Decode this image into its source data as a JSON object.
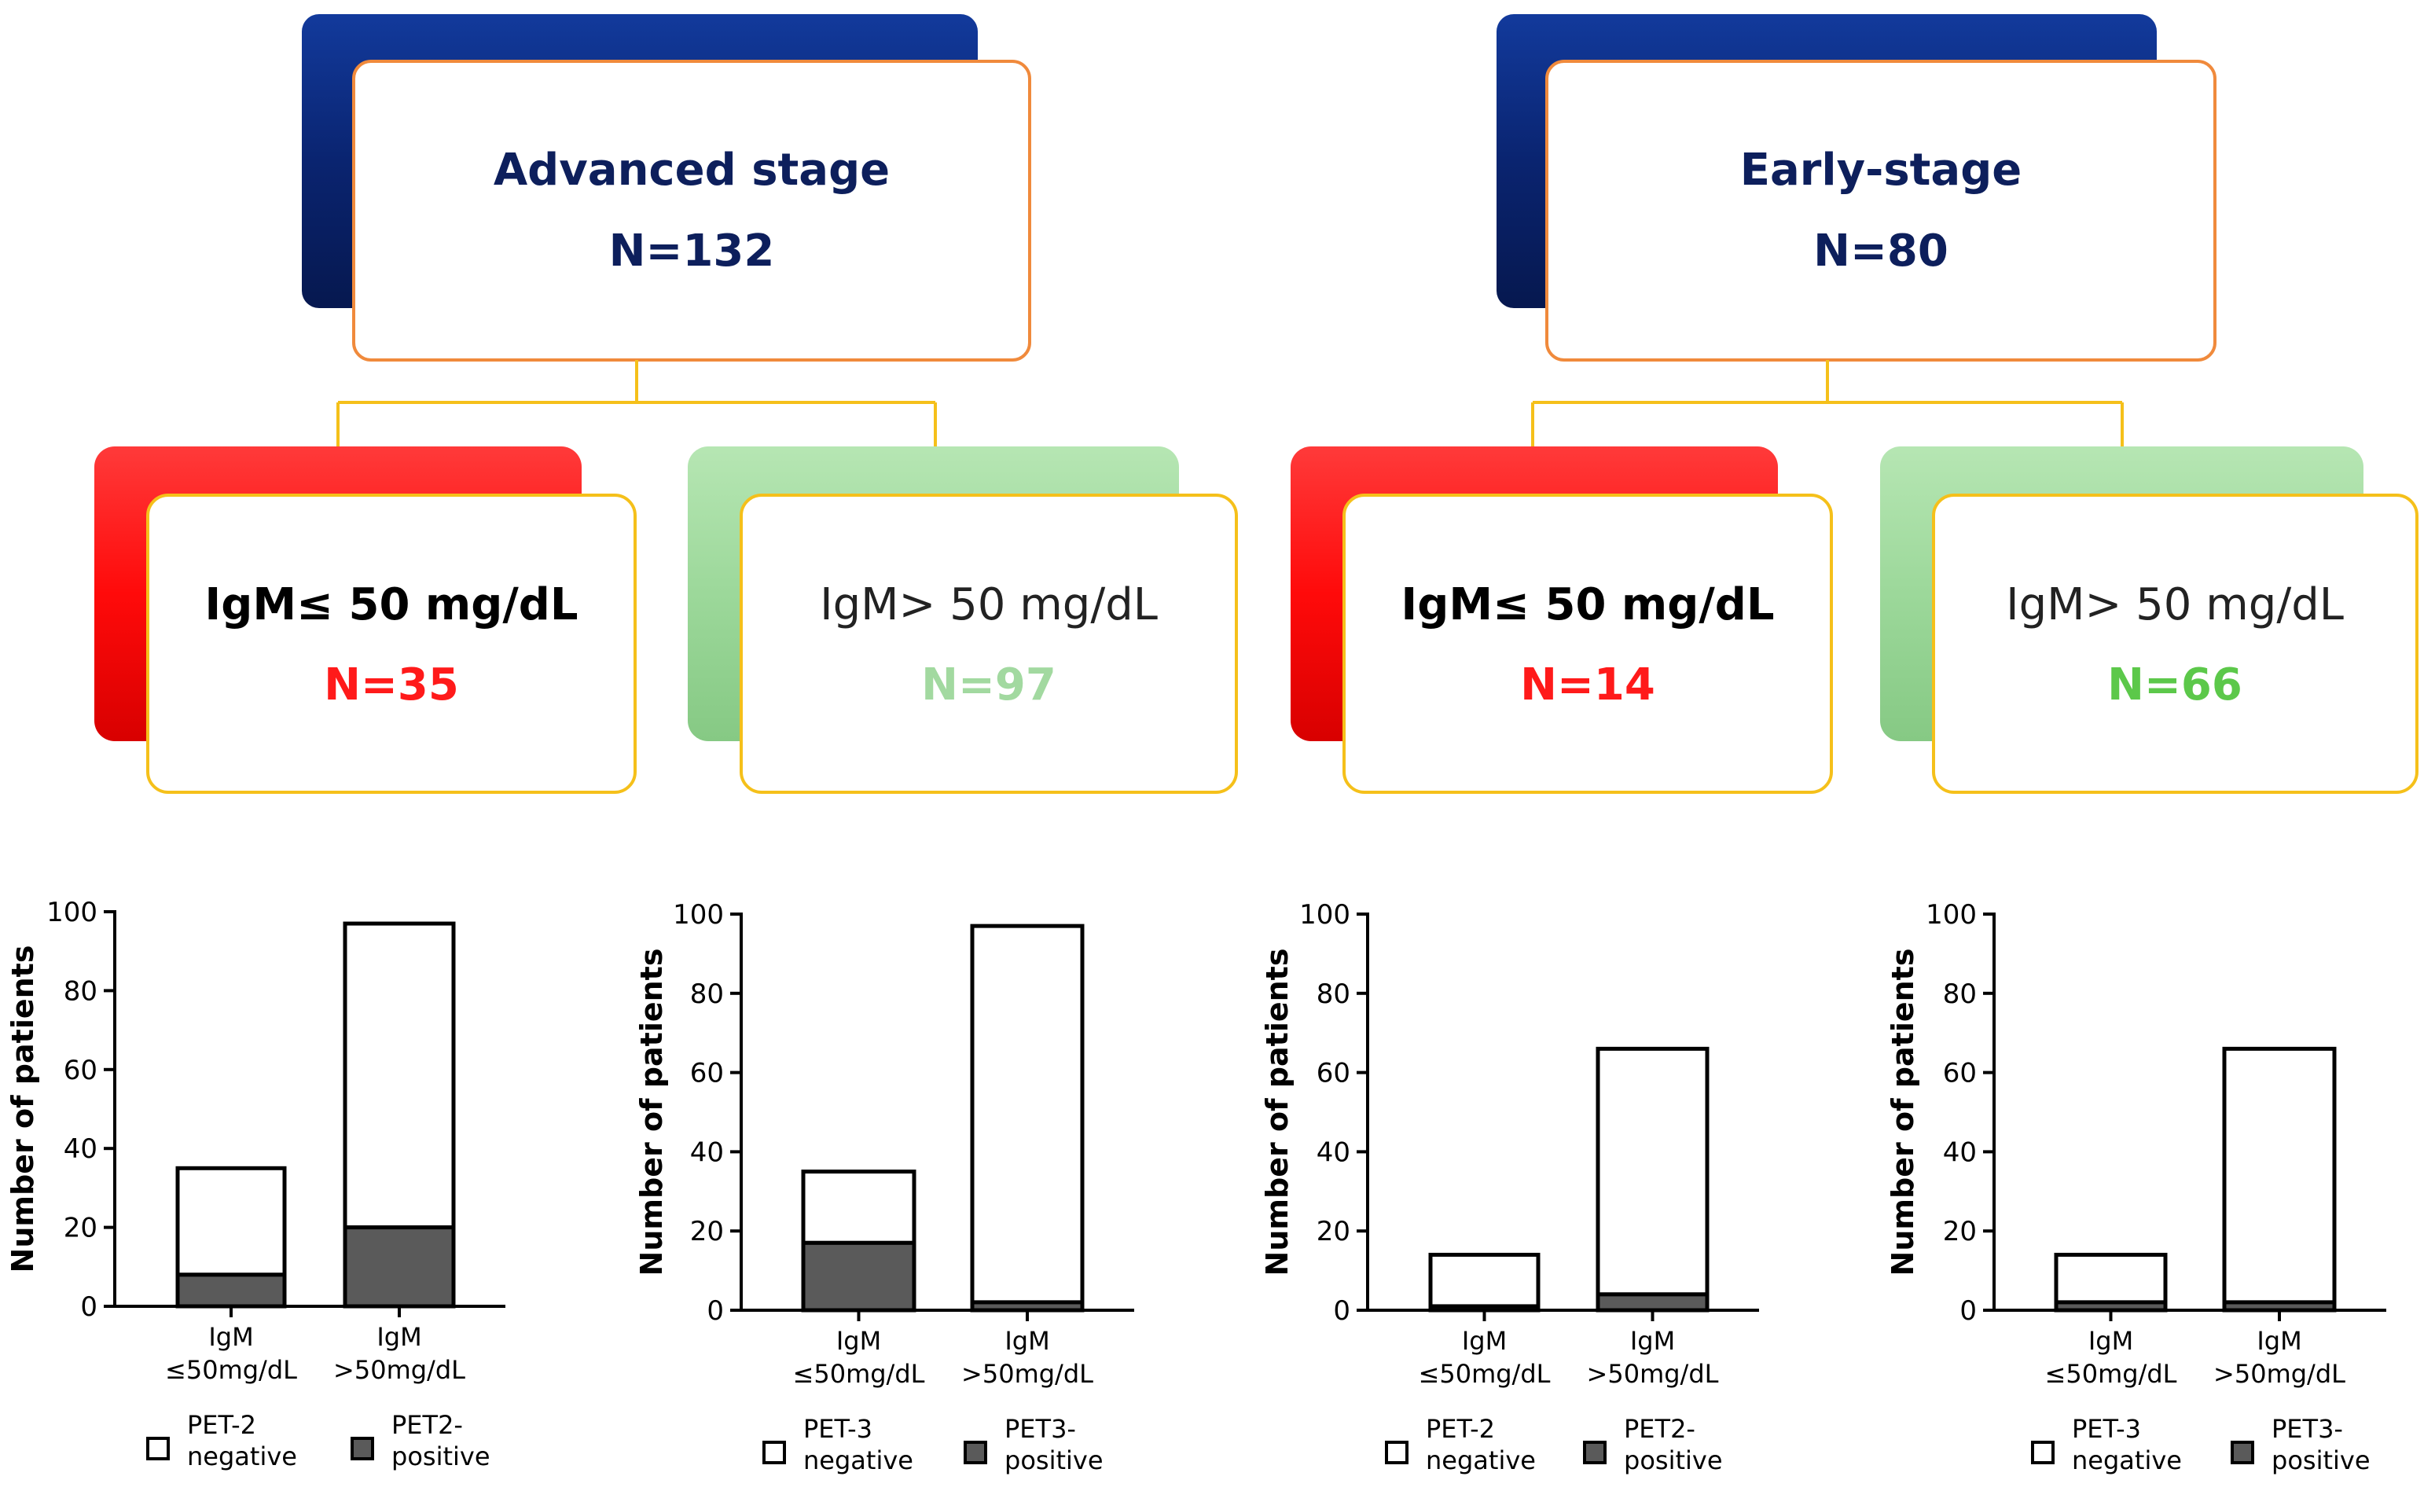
{
  "colors": {
    "navy": "#0a2470",
    "navy_text": "#0d1f5c",
    "orange_border": "#f08a3c",
    "yellow": "#f5c01a",
    "red": "#ff1010",
    "red_text": "#ff1a1a",
    "green": "#9cd89a",
    "green_text_light": "#a2d9a0",
    "green_text": "#5cc84a",
    "pet_positive": "#5a5a5a"
  },
  "groups": [
    {
      "title": "Advanced stage",
      "n": "N=132",
      "low": {
        "label": "IgM≤ 50 mg/dL",
        "n": "N=35"
      },
      "high": {
        "label": "IgM> 50 mg/dL",
        "n": "N=97"
      }
    },
    {
      "title": "Early-stage",
      "n": "N=80",
      "low": {
        "label": "IgM≤ 50 mg/dL",
        "n": "N=14"
      },
      "high": {
        "label": "IgM> 50 mg/dL",
        "n": "N=66"
      }
    }
  ],
  "chart_data": [
    {
      "type": "bar",
      "stacked": true,
      "ylabel": "Number of patients",
      "ylim": [
        0,
        100
      ],
      "yticks": [
        "0",
        "20",
        "40",
        "60",
        "80",
        "100"
      ],
      "categories": [
        [
          "IgM",
          "≤50mg/dL"
        ],
        [
          "IgM",
          ">50mg/dL"
        ]
      ],
      "series": [
        {
          "name": "PET2-positive",
          "legend": [
            "PET2-",
            "positive"
          ],
          "values": [
            8,
            20
          ]
        },
        {
          "name": "PET-2 negative",
          "legend": [
            "PET-2",
            "negative"
          ],
          "values": [
            27,
            77
          ]
        }
      ]
    },
    {
      "type": "bar",
      "stacked": true,
      "ylabel": "Number of patients",
      "ylim": [
        0,
        100
      ],
      "yticks": [
        "0",
        "20",
        "40",
        "60",
        "80",
        "100"
      ],
      "categories": [
        [
          "IgM",
          "≤50mg/dL"
        ],
        [
          "IgM",
          ">50mg/dL"
        ]
      ],
      "series": [
        {
          "name": "PET3-positive",
          "legend": [
            "PET3-",
            "positive"
          ],
          "values": [
            17,
            2
          ]
        },
        {
          "name": "PET-3 negative",
          "legend": [
            "PET-3",
            "negative"
          ],
          "values": [
            18,
            95
          ]
        }
      ]
    },
    {
      "type": "bar",
      "stacked": true,
      "ylabel": "Number of patients",
      "ylim": [
        0,
        100
      ],
      "yticks": [
        "0",
        "20",
        "40",
        "60",
        "80",
        "100"
      ],
      "categories": [
        [
          "IgM",
          "≤50mg/dL"
        ],
        [
          "IgM",
          ">50mg/dL"
        ]
      ],
      "series": [
        {
          "name": "PET2-positive",
          "legend": [
            "PET2-",
            "positive"
          ],
          "values": [
            1,
            4
          ]
        },
        {
          "name": "PET-2 negative",
          "legend": [
            "PET-2",
            "negative"
          ],
          "values": [
            13,
            62
          ]
        }
      ]
    },
    {
      "type": "bar",
      "stacked": true,
      "ylabel": "Number of patients",
      "ylim": [
        0,
        100
      ],
      "yticks": [
        "0",
        "20",
        "40",
        "60",
        "80",
        "100"
      ],
      "categories": [
        [
          "IgM",
          "≤50mg/dL"
        ],
        [
          "IgM",
          ">50mg/dL"
        ]
      ],
      "series": [
        {
          "name": "PET3-positive",
          "legend": [
            "PET3-",
            "positive"
          ],
          "values": [
            2,
            2
          ]
        },
        {
          "name": "PET-3 negative",
          "legend": [
            "PET-3",
            "negative"
          ],
          "values": [
            12,
            64
          ]
        }
      ]
    }
  ]
}
